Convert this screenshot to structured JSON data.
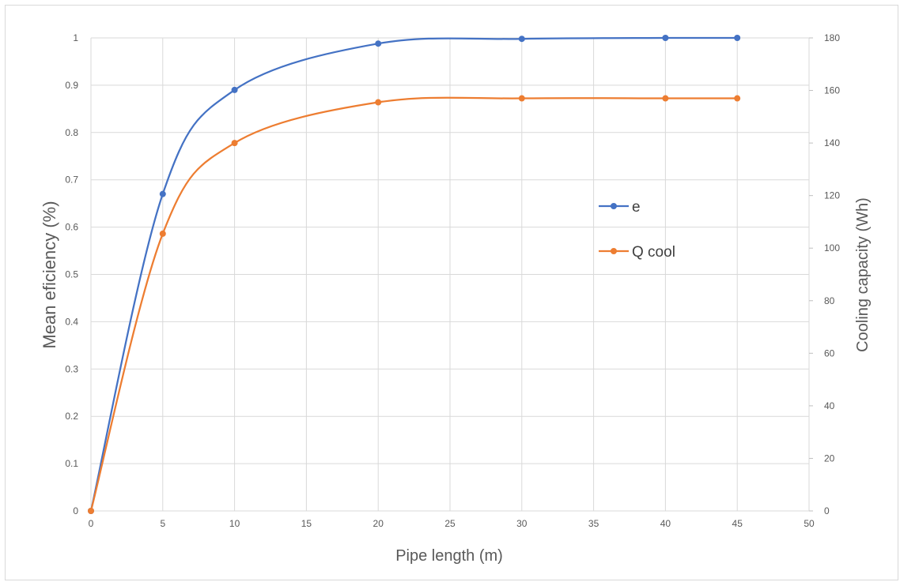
{
  "chart_data": {
    "type": "line",
    "xlabel": "Pipe length (m)",
    "ylabel": "Mean eficiency (%)",
    "y2label": "Cooling capacity (Wh)",
    "xlim": [
      0,
      50
    ],
    "ylim": [
      0,
      1
    ],
    "y2lim": [
      0,
      180
    ],
    "x_ticks": [
      "0",
      "5",
      "10",
      "15",
      "20",
      "25",
      "30",
      "35",
      "40",
      "45",
      "50"
    ],
    "y_ticks": [
      "0",
      "0.1",
      "0.2",
      "0.3",
      "0.4",
      "0.5",
      "0.6",
      "0.7",
      "0.8",
      "0.9",
      "1"
    ],
    "y2_ticks": [
      "0",
      "20",
      "40",
      "60",
      "80",
      "100",
      "120",
      "140",
      "160",
      "180"
    ],
    "grid": true,
    "smooth": true,
    "legend_position": "right-middle",
    "series": [
      {
        "name": "e",
        "axis": "left",
        "color": "#4472C4",
        "x": [
          0,
          5,
          10,
          20,
          30,
          40,
          45
        ],
        "y": [
          0,
          0.67,
          0.89,
          0.988,
          0.998,
          1.0,
          1.0
        ]
      },
      {
        "name": "Q cool",
        "axis": "right",
        "color": "#ED7D31",
        "x": [
          0,
          5,
          10,
          20,
          30,
          40,
          45
        ],
        "y": [
          0,
          105.5,
          140,
          155.5,
          157,
          157,
          157
        ]
      }
    ]
  }
}
